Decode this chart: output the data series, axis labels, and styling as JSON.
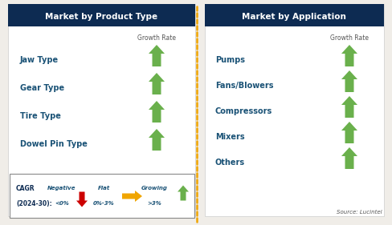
{
  "title_left": "Market by Product Type",
  "title_right": "Market by Application",
  "title_bg": "#0d2b52",
  "title_fg": "#ffffff",
  "left_items": [
    "Jaw Type",
    "Gear Type",
    "Tire Type",
    "Dowel Pin Type"
  ],
  "right_items": [
    "Pumps",
    "Fans/Blowers",
    "Compressors",
    "Mixers",
    "Others"
  ],
  "item_color": "#1a5276",
  "growth_rate_label": "Growth Rate",
  "growth_rate_color": "#555555",
  "arrow_up_color": "#6ab04c",
  "arrow_flat_color": "#f0a500",
  "arrow_down_color": "#cc0000",
  "dashed_line_color": "#f0a500",
  "legend_negative_label": "Negative",
  "legend_negative_sub": "<0%",
  "legend_flat_label": "Flat",
  "legend_flat_sub": "0%-3%",
  "legend_growing_label": "Growing",
  "legend_growing_sub": ">3%",
  "source_text": "Source: Lucintel",
  "bg_color": "#f0ede8"
}
